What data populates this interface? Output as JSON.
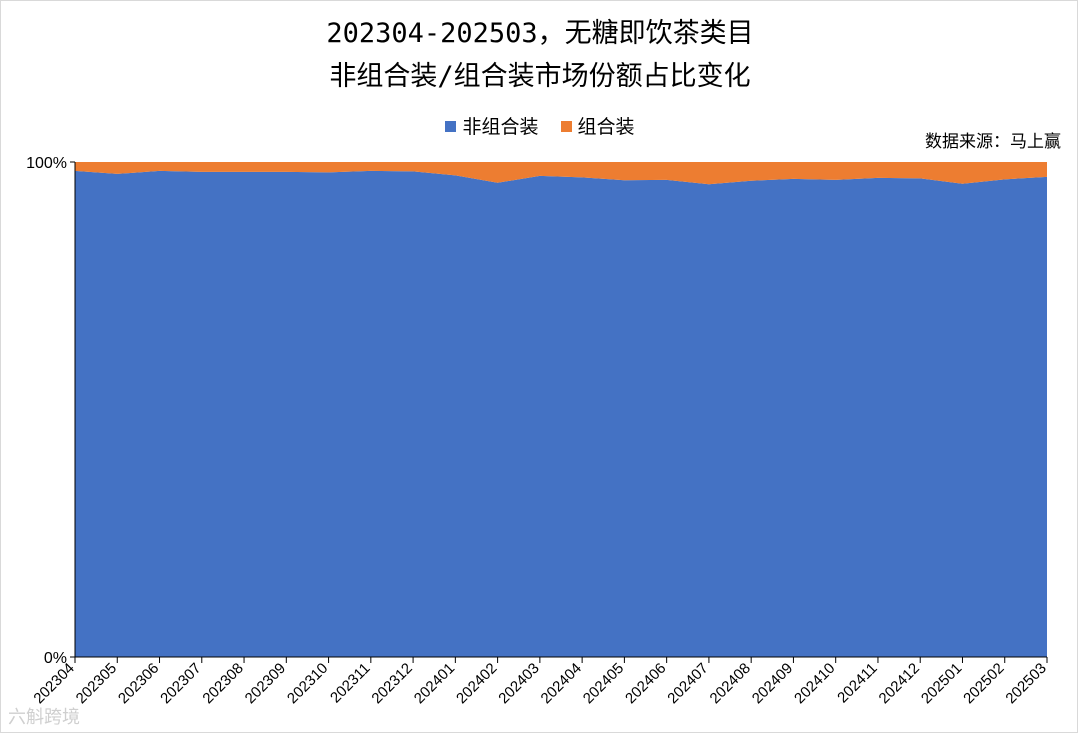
{
  "title_line1": "202304-202503，无糖即饮茶类目",
  "title_line2": "非组合装/组合装市场份额占比变化",
  "source": "数据来源：马上赢",
  "watermark": "六斛跨境",
  "legend": [
    {
      "label": "非组合装",
      "color": "#4472C4"
    },
    {
      "label": "组合装",
      "color": "#ED7D31"
    }
  ],
  "chart_data": {
    "type": "area",
    "stacked": "percent",
    "categories": [
      "202304",
      "202305",
      "202306",
      "202307",
      "202308",
      "202309",
      "202310",
      "202311",
      "202312",
      "202401",
      "202402",
      "202403",
      "202404",
      "202405",
      "202406",
      "202407",
      "202408",
      "202409",
      "202410",
      "202411",
      "202412",
      "202501",
      "202502",
      "202503"
    ],
    "series": [
      {
        "name": "非组合装",
        "color": "#4472C4",
        "values": [
          98.2,
          97.6,
          98.2,
          98.0,
          98.0,
          98.0,
          97.9,
          98.2,
          98.1,
          97.3,
          95.8,
          97.2,
          96.9,
          96.3,
          96.4,
          95.5,
          96.2,
          96.6,
          96.4,
          96.8,
          96.7,
          95.6,
          96.5,
          97.0
        ]
      },
      {
        "name": "组合装",
        "color": "#ED7D31",
        "values": [
          1.8,
          2.4,
          1.8,
          2.0,
          2.0,
          2.0,
          2.1,
          1.8,
          1.9,
          2.7,
          4.2,
          2.8,
          3.1,
          3.7,
          3.6,
          4.5,
          3.8,
          3.4,
          3.6,
          3.2,
          3.3,
          4.4,
          3.5,
          3.0
        ]
      }
    ],
    "yticks": [
      "0%",
      "100%"
    ],
    "ylim": [
      0,
      100
    ],
    "grid": false,
    "legend_position": "top"
  }
}
